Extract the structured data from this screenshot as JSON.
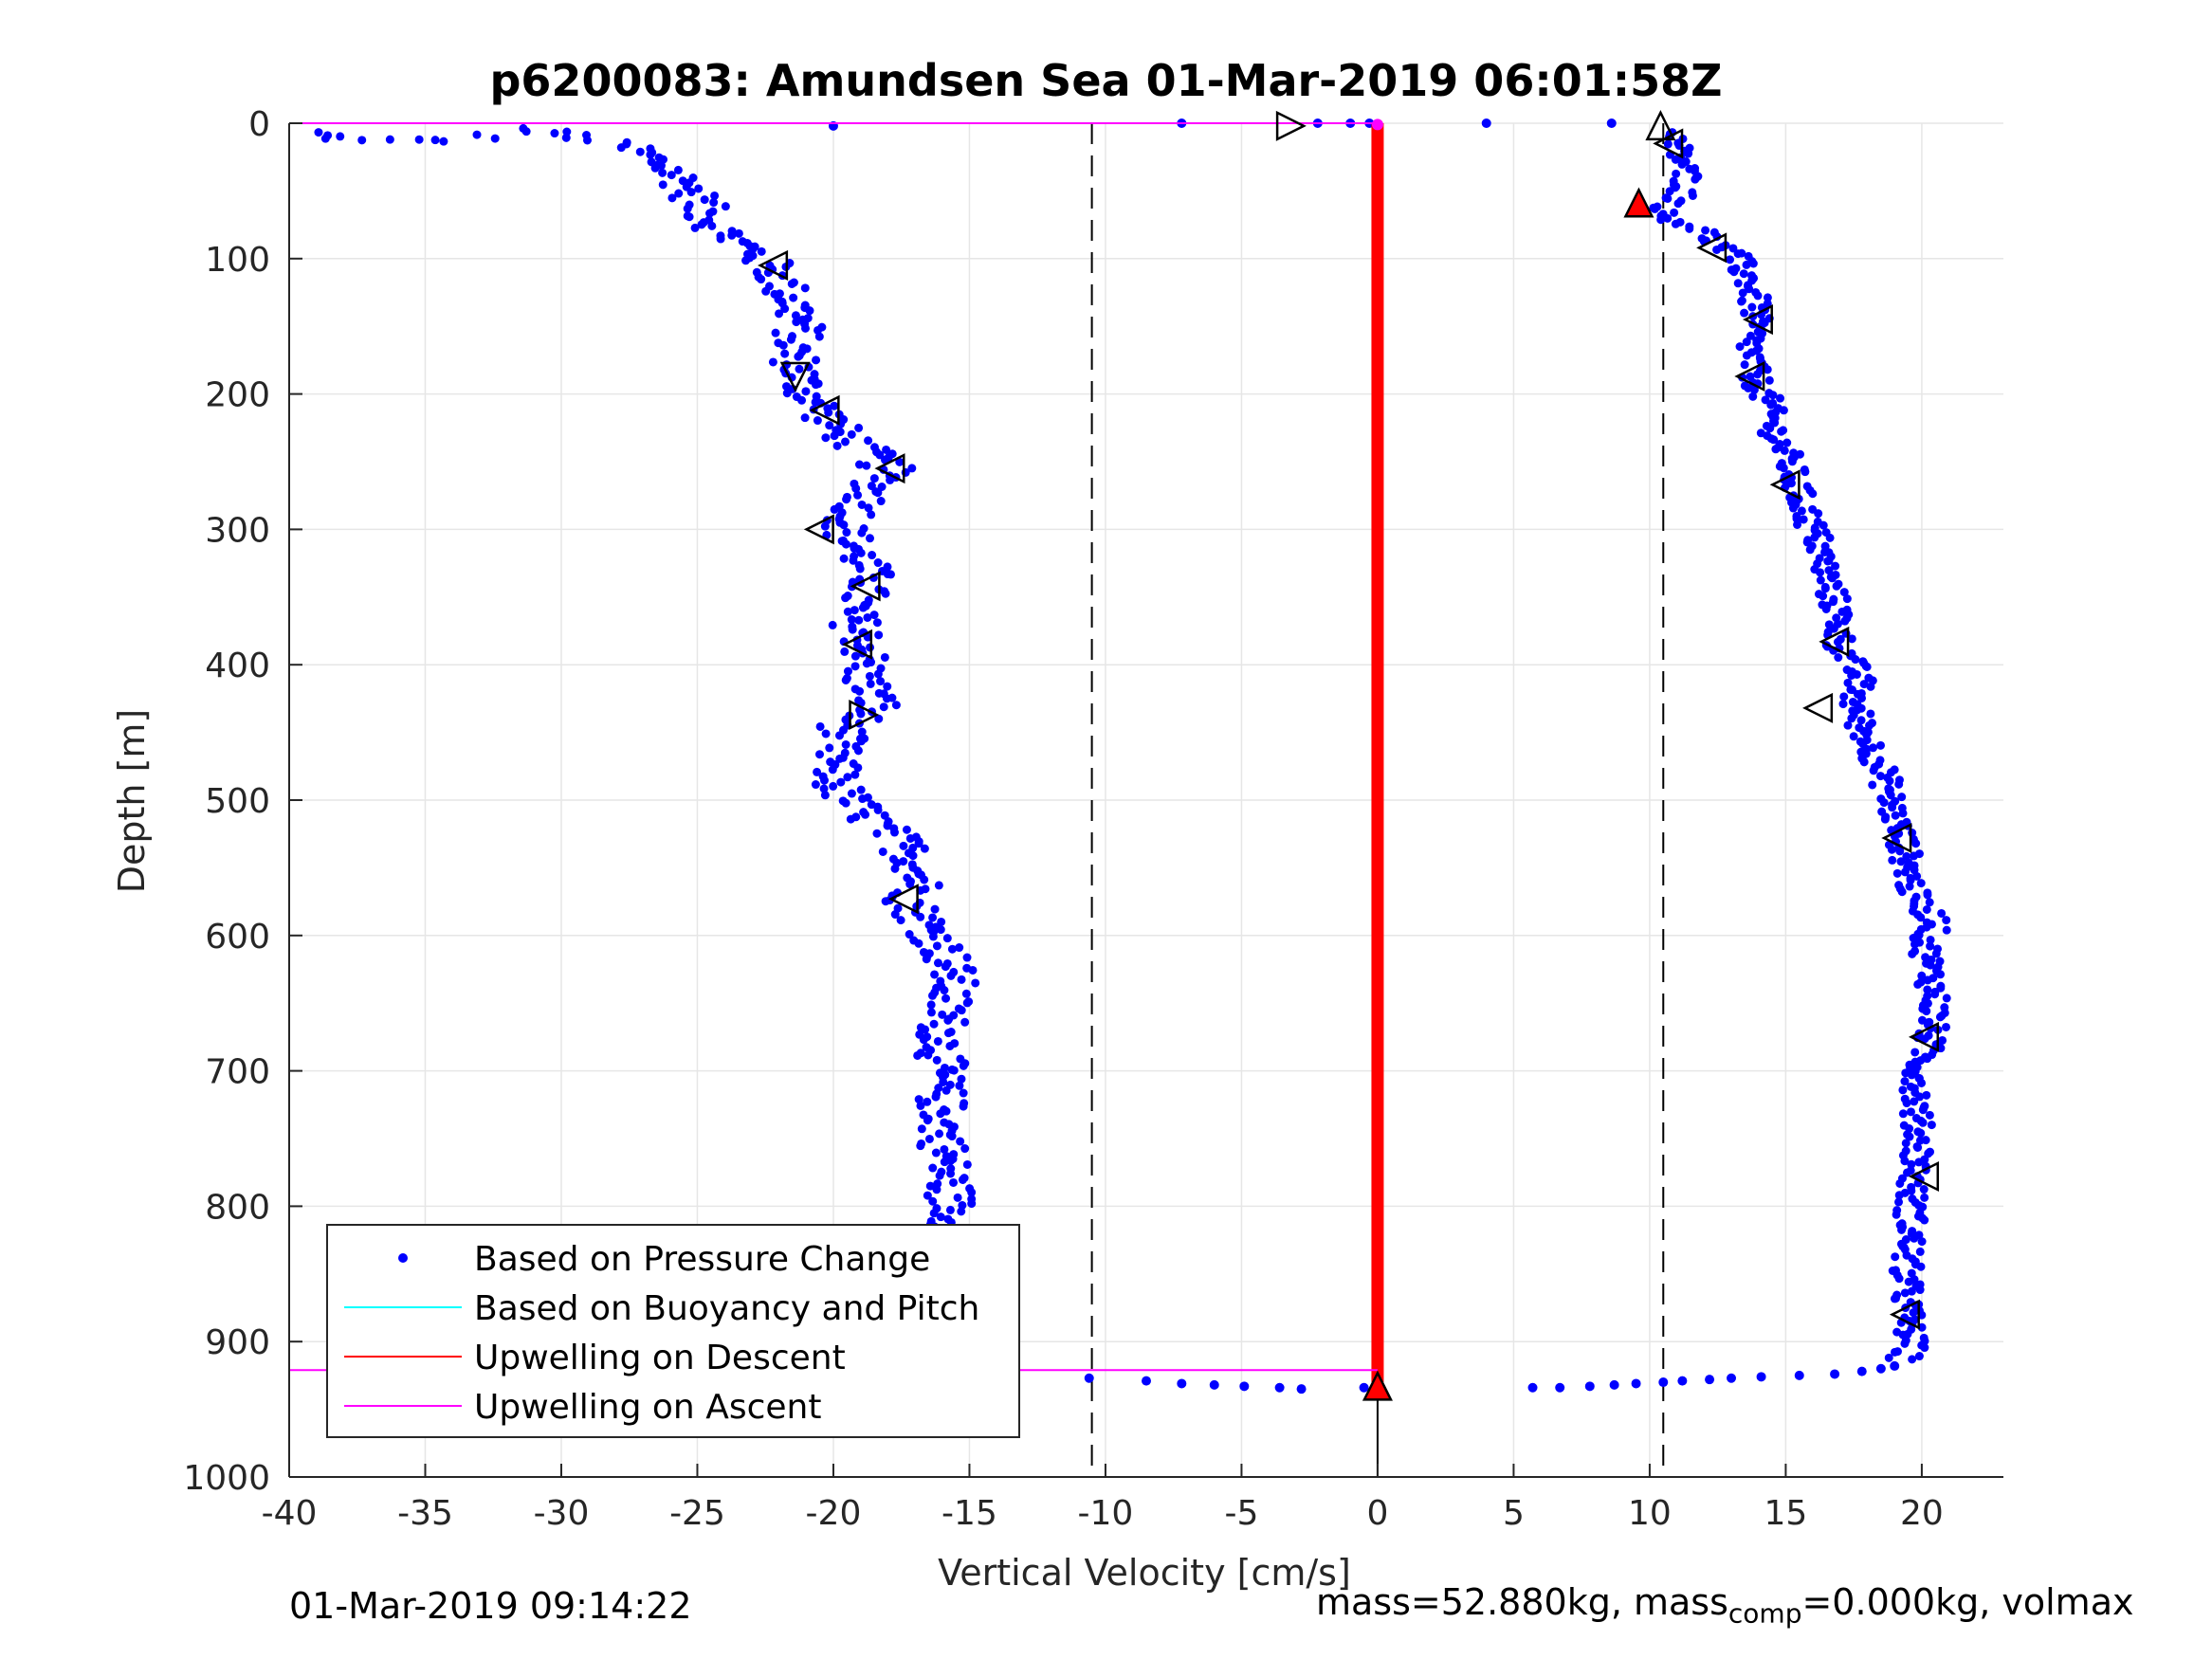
{
  "title": "p6200083: Amundsen Sea 01-Mar-2019 06:01:58Z",
  "footer": {
    "timestamp": "01-Mar-2019 09:14:22",
    "mass_text": "mass=52.880kg, mass",
    "mass_sub": "comp",
    "mass_rest": "=0.000kg, volmax"
  },
  "chart_data": {
    "type": "scatter",
    "xlabel": "Vertical Velocity [cm/s]",
    "ylabel": "Depth [m]",
    "xlim": [
      -40,
      23
    ],
    "ylim": [
      1000,
      0
    ],
    "y_reversed": true,
    "x_ticks": [
      -40,
      -35,
      -30,
      -25,
      -20,
      -15,
      -10,
      -5,
      0,
      5,
      10,
      15,
      20
    ],
    "x_tick_labels": [
      "-40",
      "-35",
      "-30",
      "-25",
      "-20",
      "-15",
      "-10",
      "-5",
      "0",
      "5",
      "10",
      "15",
      "20"
    ],
    "y_ticks": [
      0,
      100,
      200,
      300,
      400,
      500,
      600,
      700,
      800,
      900,
      1000
    ],
    "y_tick_labels": [
      "0",
      "100",
      "200",
      "300",
      "400",
      "500",
      "600",
      "700",
      "800",
      "900",
      "1000"
    ],
    "grid": true,
    "legend_position": "bottom-left",
    "colors": {
      "pressure": "#0000ff",
      "buoyancy": "#00ffff",
      "upwelling_descent": "#ff0000",
      "upwelling_ascent": "#ff00ff",
      "reference": "#000000",
      "grid": "#e6e6e6"
    },
    "series": [
      {
        "name": "Based on Pressure Change",
        "style": "dots",
        "descent": [
          [
            -39.2,
            7
          ],
          [
            -37.7,
            12
          ],
          [
            -33.8,
            13
          ],
          [
            -31,
            4
          ],
          [
            -29.2,
            11
          ],
          [
            -27.3,
            19
          ],
          [
            -26.2,
            32
          ],
          [
            -25.3,
            47
          ],
          [
            -24.8,
            63
          ],
          [
            -24.3,
            76
          ],
          [
            -23.6,
            87
          ],
          [
            -22.7,
            98
          ],
          [
            -22.2,
            108
          ],
          [
            -21.8,
            122
          ],
          [
            -21.4,
            136
          ],
          [
            -21.2,
            150
          ],
          [
            -21.5,
            165
          ],
          [
            -21.3,
            181
          ],
          [
            -21.1,
            195
          ],
          [
            -20.4,
            212
          ],
          [
            -19.8,
            228
          ],
          [
            -18.7,
            244
          ],
          [
            -18.0,
            255
          ],
          [
            -18.6,
            272
          ],
          [
            -19.3,
            292
          ],
          [
            -19.6,
            300
          ],
          [
            -19.0,
            320
          ],
          [
            -18.6,
            340
          ],
          [
            -19.4,
            360
          ],
          [
            -18.8,
            385
          ],
          [
            -18.9,
            408
          ],
          [
            -18.4,
            430
          ],
          [
            -19.6,
            446
          ],
          [
            -20.0,
            468
          ],
          [
            -19.9,
            490
          ],
          [
            -18.9,
            510
          ],
          [
            -17.6,
            530
          ],
          [
            -16.9,
            548
          ],
          [
            -16.8,
            565
          ],
          [
            -17.2,
            575
          ],
          [
            -16.6,
            592
          ],
          [
            -15.9,
            612
          ],
          [
            -15.6,
            632
          ],
          [
            -15.9,
            655
          ],
          [
            -16.0,
            680
          ],
          [
            -16.1,
            705
          ],
          [
            -16.0,
            730
          ],
          [
            -15.9,
            760
          ],
          [
            -15.7,
            790
          ],
          [
            -15.5,
            820
          ],
          [
            -15.4,
            850
          ],
          [
            -15.3,
            880
          ],
          [
            -15.6,
            908
          ],
          [
            -15.8,
            922
          ]
        ],
        "ascent": [
          [
            10.5,
            7
          ],
          [
            10.9,
            14
          ],
          [
            11.2,
            28
          ],
          [
            11.4,
            45
          ],
          [
            11.0,
            58
          ],
          [
            10.3,
            67
          ],
          [
            11.8,
            78
          ],
          [
            12.4,
            88
          ],
          [
            13.2,
            100
          ],
          [
            13.7,
            118
          ],
          [
            13.9,
            140
          ],
          [
            13.7,
            160
          ],
          [
            13.8,
            185
          ],
          [
            14.3,
            205
          ],
          [
            14.6,
            228
          ],
          [
            15.1,
            250
          ],
          [
            15.4,
            270
          ],
          [
            15.8,
            290
          ],
          [
            16.2,
            310
          ],
          [
            16.5,
            335
          ],
          [
            16.9,
            360
          ],
          [
            17.0,
            385
          ],
          [
            17.7,
            410
          ],
          [
            17.5,
            430
          ],
          [
            18.0,
            455
          ],
          [
            18.6,
            480
          ],
          [
            18.9,
            505
          ],
          [
            19.3,
            530
          ],
          [
            19.5,
            550
          ],
          [
            19.7,
            572
          ],
          [
            20.6,
            590
          ],
          [
            20.1,
            605
          ],
          [
            20.3,
            625
          ],
          [
            20.5,
            650
          ],
          [
            20.3,
            675
          ],
          [
            19.9,
            700
          ],
          [
            19.8,
            730
          ],
          [
            19.9,
            760
          ],
          [
            19.6,
            790
          ],
          [
            19.6,
            820
          ],
          [
            19.4,
            850
          ],
          [
            19.5,
            880
          ],
          [
            19.6,
            905
          ],
          [
            19.2,
            915
          ]
        ],
        "scattered": [
          [
            -20,
            2
          ],
          [
            -7.2,
            0
          ],
          [
            -2.2,
            0
          ],
          [
            -1.0,
            0
          ],
          [
            -0.3,
            0
          ],
          [
            4.0,
            0
          ],
          [
            8.6,
            0
          ],
          [
            -14.1,
            927
          ],
          [
            -10.6,
            927
          ],
          [
            -8.5,
            929
          ],
          [
            -7.2,
            931
          ],
          [
            -6,
            932
          ],
          [
            -4.9,
            933
          ],
          [
            -3.6,
            934
          ],
          [
            -2.8,
            935
          ],
          [
            -0.5,
            934
          ],
          [
            5.7,
            934
          ],
          [
            6.7,
            934
          ],
          [
            7.8,
            933
          ],
          [
            8.7,
            932
          ],
          [
            9.5,
            931
          ],
          [
            10.5,
            930
          ],
          [
            11.2,
            929
          ],
          [
            12.2,
            928
          ],
          [
            13.0,
            927
          ],
          [
            14.1,
            926
          ],
          [
            15.5,
            925
          ],
          [
            16.8,
            924
          ],
          [
            17.8,
            922
          ],
          [
            18.5,
            920
          ],
          [
            19.0,
            918
          ]
        ],
        "triangles": [
          [
            -3.2,
            2,
            "right"
          ],
          [
            10.4,
            2,
            "up"
          ],
          [
            10.7,
            15,
            "left"
          ],
          [
            -22.2,
            105,
            "left"
          ],
          [
            12.3,
            92,
            "left"
          ],
          [
            14.0,
            145,
            "left"
          ],
          [
            -21.4,
            187,
            "down"
          ],
          [
            13.7,
            187,
            "left"
          ],
          [
            -20.3,
            212,
            "left"
          ],
          [
            -17.9,
            255,
            "left"
          ],
          [
            15.0,
            267,
            "left"
          ],
          [
            -20.5,
            300,
            "left"
          ],
          [
            -18.8,
            342,
            "left"
          ],
          [
            -19.1,
            385,
            "left"
          ],
          [
            16.8,
            383,
            "left"
          ],
          [
            -18.9,
            437,
            "right"
          ],
          [
            16.2,
            432,
            "left"
          ],
          [
            19.1,
            528,
            "left"
          ],
          [
            -17.4,
            573,
            "left"
          ],
          [
            20.1,
            675,
            "left"
          ],
          [
            20.1,
            778,
            "left"
          ],
          [
            19.4,
            880,
            "left"
          ]
        ],
        "red_triangles": [
          [
            -15.8,
            922
          ],
          [
            9.6,
            59
          ]
        ]
      },
      {
        "name": "Based on Buoyancy and Pitch",
        "style": "line",
        "points": []
      },
      {
        "name": "Upwelling on Descent",
        "style": "line",
        "x": 0,
        "y_range": [
          0,
          930
        ]
      },
      {
        "name": "Upwelling on Ascent",
        "style": "line",
        "segments": [
          [
            [
              -40,
              0
            ],
            [
              0,
              0
            ]
          ],
          [
            [
              -40,
              921
            ],
            [
              0,
              921
            ]
          ]
        ]
      }
    ],
    "reference_lines": {
      "dashed_x": [
        -10.5,
        10.5
      ],
      "solid_bottom_x": 0,
      "solid_bottom_y": [
        933,
        1000
      ],
      "marker_bottom": [
        0,
        933
      ]
    },
    "legend": [
      {
        "label": "Based on Pressure Change",
        "marker": "dot"
      },
      {
        "label": "Based on Buoyancy and Pitch",
        "marker": "line"
      },
      {
        "label": "Upwelling on Descent",
        "marker": "line"
      },
      {
        "label": "Upwelling on Ascent",
        "marker": "line"
      }
    ]
  }
}
